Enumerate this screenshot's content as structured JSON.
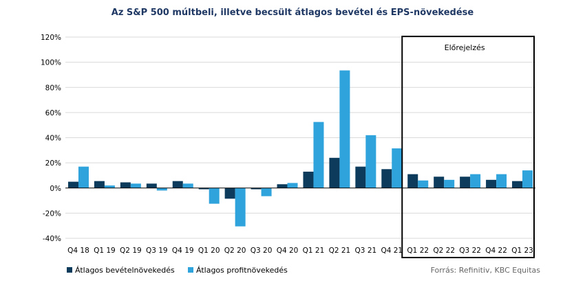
{
  "chart_data": {
    "type": "bar",
    "title": "Az S&P 500 múltbeli, illetve becsült átlagos bevétel és EPS-növekedése",
    "categories": [
      "Q4 18",
      "Q1 19",
      "Q2 19",
      "Q3 19",
      "Q4 19",
      "Q1 20",
      "Q2 20",
      "Q3 20",
      "Q4 20",
      "Q1 21",
      "Q2 21",
      "Q3 21",
      "Q4 21",
      "Q1 22",
      "Q2 22",
      "Q3 22",
      "Q4 22",
      "Q1 23"
    ],
    "series": [
      {
        "name": "Átlagos bevételnövekedés",
        "color": "#0d3b5c",
        "values": [
          5,
          5.5,
          4.5,
          3.5,
          5.5,
          -1,
          -8.5,
          -1,
          3,
          13,
          24,
          17,
          15,
          11,
          9,
          9,
          6.5,
          5.5
        ]
      },
      {
        "name": "Átlagos profitnövekedés",
        "color": "#2ea3dc",
        "values": [
          17,
          2,
          3.5,
          -2,
          3.5,
          -12.5,
          -30.5,
          -6.5,
          4,
          52.5,
          93.5,
          42,
          31.5,
          6,
          6.5,
          11,
          11,
          14
        ]
      }
    ],
    "yticks": [
      "-40%",
      "-20%",
      "0%",
      "20%",
      "40%",
      "60%",
      "80%",
      "100%",
      "120%"
    ],
    "ylim": [
      -40,
      120
    ],
    "grid": true,
    "forecast": {
      "label": "Előrejelzés",
      "start_index": 13,
      "end_index": 17
    },
    "source": "Forrás: Refinitiv, KBC Equitas"
  }
}
